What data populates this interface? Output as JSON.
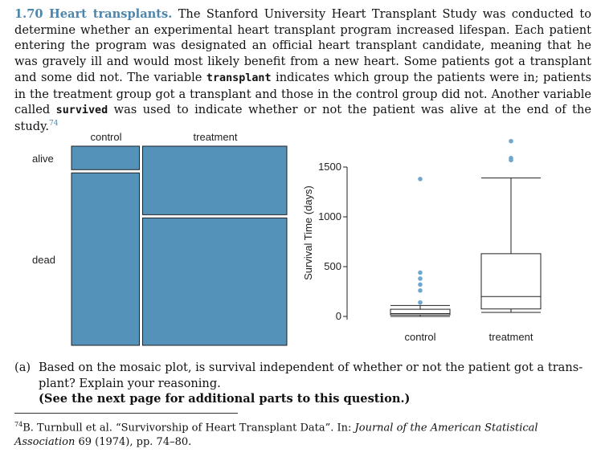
{
  "exercise": {
    "number": "1.70",
    "title": "Heart transplants.",
    "text_1": "The Stanford University Heart Transplant Study was conducted to determine whether an experimental heart transplant program increased lifespan. Each patient entering the program was designated an official heart transplant candidate, meaning that he was gravely ill and would most likely benefit from a new heart. Some patients got a transplant and some did not. The variable",
    "var_transplant": "transplant",
    "text_2": "indicates which group the patients were in; patients in the treatment group got a transplant and those in the control group did not. Another variable called",
    "var_survived": "survived",
    "text_3": "was used to indicate whether or not the patient was alive at the end of the study.",
    "footnote_ref": "74"
  },
  "colors": {
    "accent": "#4d86ac",
    "mosaic_fill": "#5592b9",
    "points": "#6ea7cf"
  },
  "chart_data": [
    {
      "type": "mosaic",
      "column_labels": [
        "control",
        "treatment"
      ],
      "row_labels": [
        "alive",
        "dead"
      ],
      "column_proportions": [
        0.32,
        0.68
      ],
      "row_proportions": {
        "control": {
          "alive": 0.12,
          "dead": 0.88
        },
        "treatment": {
          "alive": 0.35,
          "dead": 0.65
        }
      }
    },
    {
      "type": "boxplot",
      "ylabel": "Survival Time (days)",
      "categories": [
        "control",
        "treatment"
      ],
      "yticks": [
        0,
        500,
        1000,
        1500
      ],
      "ylim": [
        0,
        1800
      ],
      "boxes": [
        {
          "name": "control",
          "whisker_low": 0,
          "q1": 15,
          "median": 28,
          "q3": 72,
          "whisker_high": 110,
          "outliers": [
            140,
            260,
            320,
            380,
            440,
            1380
          ]
        },
        {
          "name": "treatment",
          "whisker_low": 40,
          "q1": 75,
          "median": 200,
          "q3": 630,
          "whisker_high": 1390,
          "outliers": [
            1570,
            1590,
            1760
          ]
        }
      ]
    }
  ],
  "question": {
    "label": "(a)",
    "text_1": "Based on the mosaic plot, is survival independent of whether or not the patient got a trans-",
    "text_2": "plant? Explain your reasoning.",
    "note": "(See the next page for additional parts to this question.)"
  },
  "footnote": {
    "mark": "74",
    "text_1": "B. Turnbull et al. “Survivorship of Heart Transplant Data”. In:",
    "journal": "Journal of the American Statistical Association",
    "text_2": "69 (1974), pp. 74–80."
  }
}
